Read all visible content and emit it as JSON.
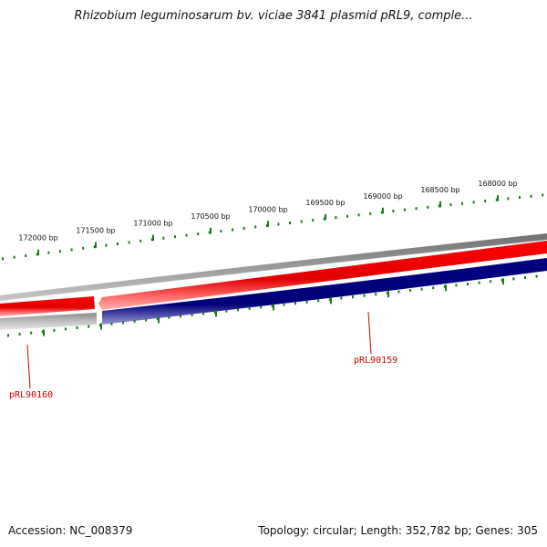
{
  "title": "Rhizobium leguminosarum bv. viciae 3841 plasmid pRL9, comple...",
  "footer": {
    "accession": "Accession: NC_008379",
    "summary": "Topology: circular; Length: 352,782 bp; Genes: 305"
  },
  "ticks": [
    "172000 bp",
    "171500 bp",
    "171000 bp",
    "170500 bp",
    "170000 bp",
    "169500 bp",
    "169000 bp",
    "168500 bp",
    "168000 bp"
  ],
  "genes": [
    {
      "name": "pRL90160",
      "color": "#cc0000"
    },
    {
      "name": "pRL90159",
      "color": "#cc0000"
    }
  ],
  "colors": {
    "forward": "#ee0000",
    "reverse": "#000080",
    "backbone": "#808080",
    "ticks": "#1a7a1a"
  }
}
